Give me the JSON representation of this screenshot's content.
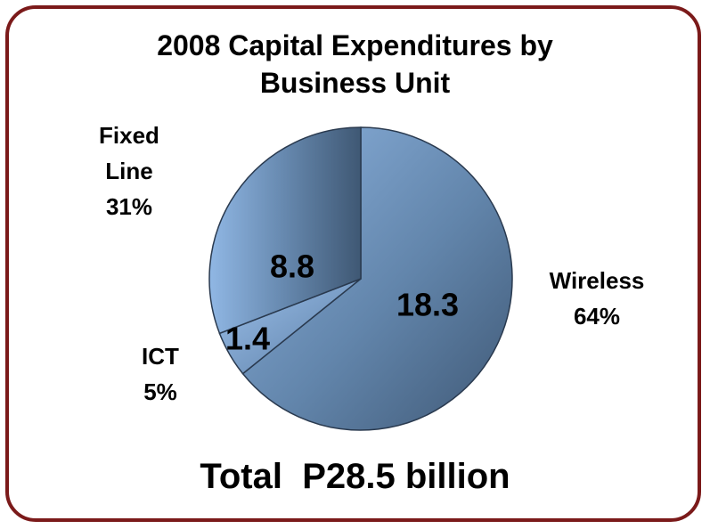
{
  "chart_data": {
    "type": "pie",
    "title": "2008 Capital Expenditures by Business Unit",
    "categories": [
      "Wireless",
      "ICT",
      "Fixed Line"
    ],
    "values": [
      18.3,
      1.4,
      8.8
    ],
    "percent_labels": [
      "64%",
      "5%",
      "31%"
    ],
    "total_label": "Total  P28.5 billion",
    "start_angle": 0,
    "direction": "clockwise"
  }
}
